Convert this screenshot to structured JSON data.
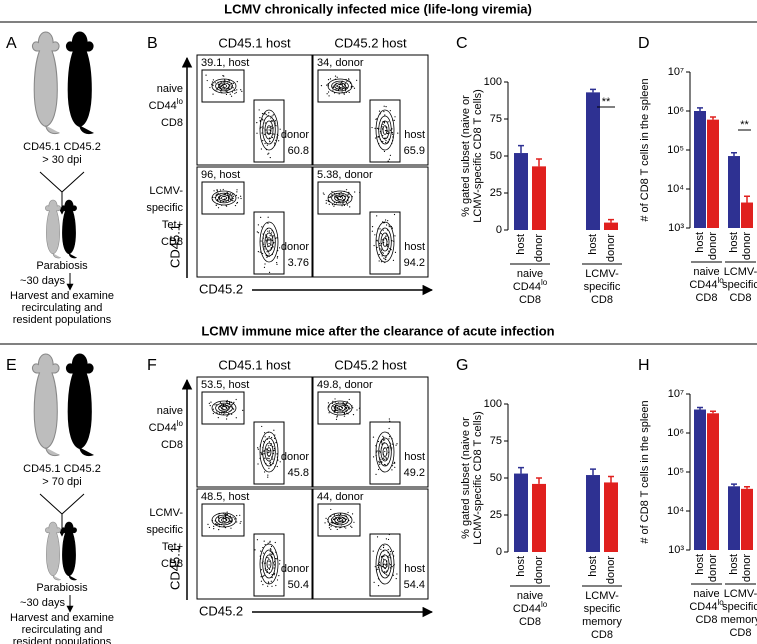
{
  "sections": [
    {
      "title": "LCMV chronically infected mice (life-long viremia)",
      "diagram": {
        "letter": "A",
        "groups": "CD45.1 CD45.2",
        "dpi": "> 30 dpi",
        "step": "Parabiosis",
        "duration": "~30 days",
        "outcome": [
          "Harvest and examine",
          "recirculating and",
          "resident populations"
        ]
      },
      "flow": {
        "letter": "B",
        "columns": [
          "CD45.1 host",
          "CD45.2 host"
        ],
        "y_axis": "CD45.1",
        "x_axis": "CD45.2",
        "rows": [
          {
            "label": [
              [
                "naive"
              ],
              [
                "CD44",
                "lo"
              ],
              [
                "CD8"
              ]
            ],
            "plots": [
              {
                "upper": "39.1, host",
                "upper_color": "#4d57a4",
                "lower": [
                  "donor",
                  "60.8"
                ],
                "lower_color": "#c2362b"
              },
              {
                "upper": "34, donor",
                "upper_color": "#c2362b",
                "lower": [
                  "host",
                  "65.9"
                ],
                "lower_color": "#4d57a4"
              }
            ]
          },
          {
            "label": [
              [
                "LCMV-"
              ],
              [
                "specific"
              ],
              [
                "Tet+"
              ],
              [
                "CD8"
              ]
            ],
            "plots": [
              {
                "upper": "96, host",
                "upper_color": "#4d57a4",
                "lower": [
                  "donor",
                  "3.76"
                ],
                "lower_color": "#c2362b"
              },
              {
                "upper": "5.38, donor",
                "upper_color": "#c2362b",
                "lower": [
                  "host",
                  "94.2"
                ],
                "lower_color": "#4d57a4"
              }
            ]
          }
        ]
      },
      "bars": {
        "letter": "C",
        "y_label": [
          "% gated subset (naive or",
          "LCMV-specific CD8 T cells)"
        ],
        "log": false,
        "ylim": [
          0,
          100
        ],
        "yticks": [
          0,
          25,
          50,
          75,
          100
        ],
        "categories": [
          "host",
          "donor"
        ],
        "colors": [
          "#2e3192",
          "#e0201e"
        ],
        "groups": [
          {
            "label": [
              [
                "naive"
              ],
              [
                "CD44",
                "lo"
              ],
              [
                "CD8"
              ]
            ],
            "values": [
              52,
              43
            ],
            "errors": [
              5,
              5
            ]
          },
          {
            "label": [
              [
                "LCMV-"
              ],
              [
                "specific"
              ],
              [
                "CD8"
              ]
            ],
            "values": [
              93,
              5
            ],
            "errors": [
              2,
              2
            ],
            "annotation": "**"
          }
        ]
      },
      "log_bars": {
        "letter": "D",
        "y_label": [
          "# of CD8 T cells in the spleen"
        ],
        "log": true,
        "ylim": [
          1000,
          10000000
        ],
        "yticks": [
          {
            "value": 1000,
            "label": "10³"
          },
          {
            "value": 10000,
            "label": "10⁴"
          },
          {
            "value": 100000,
            "label": "10⁵"
          },
          {
            "value": 1000000,
            "label": "10⁶"
          },
          {
            "value": 10000000,
            "label": "10⁷"
          }
        ],
        "categories": [
          "host",
          "donor"
        ],
        "colors": [
          "#2e3192",
          "#e0201e"
        ],
        "groups": [
          {
            "label": [
              [
                "naive"
              ],
              [
                "CD44",
                "lo"
              ],
              [
                "CD8"
              ]
            ],
            "values": [
              1000000,
              600000
            ],
            "errors": [
              200000,
              100000
            ]
          },
          {
            "label": [
              [
                "LCMV-"
              ],
              [
                "specific"
              ],
              [
                "CD8"
              ]
            ],
            "values": [
              70000,
              4500
            ],
            "errors": [
              15000,
              2000
            ],
            "annotation": "**"
          }
        ]
      }
    },
    {
      "title": "LCMV immune mice after the clearance of acute infection",
      "diagram": {
        "letter": "E",
        "groups": "CD45.1 CD45.2",
        "dpi": "> 70 dpi",
        "step": "Parabiosis",
        "duration": "~30 days",
        "outcome": [
          "Harvest and examine",
          "recirculating and",
          "resident populations"
        ]
      },
      "flow": {
        "letter": "F",
        "columns": [
          "CD45.1 host",
          "CD45.2 host"
        ],
        "y_axis": "CD45.1",
        "x_axis": "CD45.2",
        "rows": [
          {
            "label": [
              [
                "naive"
              ],
              [
                "CD44",
                "lo"
              ],
              [
                "CD8"
              ]
            ],
            "plots": [
              {
                "upper": "53.5, host",
                "upper_color": "#4d57a4",
                "lower": [
                  "donor",
                  "45.8"
                ],
                "lower_color": "#c2362b"
              },
              {
                "upper": "49.8, donor",
                "upper_color": "#c2362b",
                "lower": [
                  "host",
                  "49.2"
                ],
                "lower_color": "#4d57a4"
              }
            ]
          },
          {
            "label": [
              [
                "LCMV-"
              ],
              [
                "specific"
              ],
              [
                "Tet+"
              ],
              [
                "CD8"
              ]
            ],
            "plots": [
              {
                "upper": "48.5, host",
                "upper_color": "#4d57a4",
                "lower": [
                  "donor",
                  "50.4"
                ],
                "lower_color": "#c2362b"
              },
              {
                "upper": "44, donor",
                "upper_color": "#c2362b",
                "lower": [
                  "host",
                  "54.4"
                ],
                "lower_color": "#4d57a4"
              }
            ]
          }
        ]
      },
      "bars": {
        "letter": "G",
        "y_label": [
          "% gated subset (naive or",
          "LCMV-specific CD8 T cells)"
        ],
        "log": false,
        "ylim": [
          0,
          100
        ],
        "yticks": [
          0,
          25,
          50,
          75,
          100
        ],
        "categories": [
          "host",
          "donor"
        ],
        "colors": [
          "#2e3192",
          "#e0201e"
        ],
        "groups": [
          {
            "label": [
              [
                "naive"
              ],
              [
                "CD44",
                "lo"
              ],
              [
                "CD8"
              ]
            ],
            "values": [
              53,
              46
            ],
            "errors": [
              4,
              4
            ]
          },
          {
            "label": [
              [
                "LCMV-"
              ],
              [
                "specific"
              ],
              [
                "memory"
              ],
              [
                "CD8"
              ]
            ],
            "values": [
              52,
              47
            ],
            "errors": [
              4,
              4
            ]
          }
        ]
      },
      "log_bars": {
        "letter": "H",
        "y_label": [
          "# of CD8 T cells in the spleen"
        ],
        "log": true,
        "ylim": [
          1000,
          10000000
        ],
        "yticks": [
          {
            "value": 1000,
            "label": "10³"
          },
          {
            "value": 10000,
            "label": "10⁴"
          },
          {
            "value": 100000,
            "label": "10⁵"
          },
          {
            "value": 1000000,
            "label": "10⁶"
          },
          {
            "value": 10000000,
            "label": "10⁷"
          }
        ],
        "categories": [
          "host",
          "donor"
        ],
        "colors": [
          "#2e3192",
          "#e0201e"
        ],
        "groups": [
          {
            "label": [
              [
                "naive"
              ],
              [
                "CD44",
                "lo"
              ],
              [
                "CD8"
              ]
            ],
            "values": [
              4000000,
              3200000
            ],
            "errors": [
              500000,
              400000
            ]
          },
          {
            "label": [
              [
                "LCMV-"
              ],
              [
                "specific"
              ],
              [
                "memory"
              ],
              [
                "CD8"
              ]
            ],
            "values": [
              43000,
              37000
            ],
            "errors": [
              6000,
              5000
            ]
          }
        ]
      }
    }
  ]
}
